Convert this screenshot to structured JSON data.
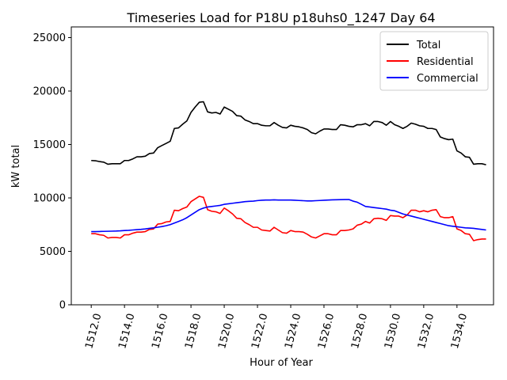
{
  "chart_data": {
    "type": "line",
    "title": "Timeseries Load for P18U p18uhs0_1247  Day 64",
    "xlabel": "Hour of Year",
    "ylabel": "kW total",
    "xlim": [
      1510.8,
      1536.2
    ],
    "ylim": [
      0,
      26000
    ],
    "x_ticks": [
      1512,
      1514,
      1516,
      1518,
      1520,
      1522,
      1524,
      1526,
      1528,
      1530,
      1532,
      1534
    ],
    "x_tick_labels": [
      "1512.0",
      "1514.0",
      "1516.0",
      "1518.0",
      "1520.0",
      "1522.0",
      "1524.0",
      "1526.0",
      "1528.0",
      "1530.0",
      "1532.0",
      "1534.0"
    ],
    "y_ticks": [
      0,
      5000,
      10000,
      15000,
      20000,
      25000
    ],
    "y_tick_labels": [
      "0",
      "5000",
      "10000",
      "15000",
      "20000",
      "25000"
    ],
    "legend_position": "top-right",
    "series": [
      {
        "name": "Total",
        "color": "#000000",
        "x_start": 1512,
        "x_step": 0.25,
        "values": [
          13500,
          13480,
          13400,
          13350,
          13150,
          13200,
          13200,
          13200,
          13500,
          13500,
          13650,
          13850,
          13850,
          13900,
          14150,
          14200,
          14700,
          14900,
          15100,
          15300,
          16500,
          16550,
          16900,
          17200,
          18000,
          18500,
          18950,
          19000,
          18050,
          17950,
          18000,
          17850,
          18500,
          18300,
          18100,
          17700,
          17650,
          17300,
          17150,
          16950,
          16950,
          16800,
          16750,
          16750,
          17050,
          16800,
          16600,
          16550,
          16800,
          16700,
          16650,
          16550,
          16400,
          16100,
          16000,
          16250,
          16450,
          16450,
          16400,
          16400,
          16850,
          16800,
          16700,
          16650,
          16850,
          16850,
          16950,
          16750,
          17150,
          17150,
          17050,
          16800,
          17150,
          16850,
          16700,
          16500,
          16700,
          17000,
          16900,
          16750,
          16700,
          16500,
          16500,
          16400,
          15700,
          15550,
          15450,
          15500,
          14400,
          14200,
          13850,
          13800,
          13150,
          13200,
          13200,
          13100
        ]
      },
      {
        "name": "Residential",
        "color": "#ff0000",
        "x_start": 1512,
        "x_step": 0.25,
        "values": [
          6650,
          6650,
          6550,
          6500,
          6250,
          6300,
          6300,
          6250,
          6550,
          6550,
          6700,
          6800,
          6800,
          6850,
          7050,
          7100,
          7550,
          7600,
          7750,
          7800,
          8850,
          8800,
          9000,
          9150,
          9650,
          9900,
          10150,
          10050,
          8900,
          8750,
          8700,
          8550,
          9050,
          8800,
          8500,
          8100,
          8050,
          7700,
          7500,
          7250,
          7250,
          7000,
          6950,
          6900,
          7250,
          7000,
          6750,
          6700,
          6950,
          6850,
          6850,
          6800,
          6600,
          6350,
          6250,
          6450,
          6650,
          6650,
          6550,
          6550,
          6950,
          6950,
          7000,
          7100,
          7450,
          7550,
          7800,
          7650,
          8050,
          8100,
          8050,
          7900,
          8350,
          8300,
          8300,
          8150,
          8400,
          8850,
          8850,
          8700,
          8800,
          8700,
          8850,
          8900,
          8250,
          8150,
          8150,
          8250,
          7100,
          6950,
          6650,
          6600,
          6000,
          6100,
          6150,
          6150
        ]
      },
      {
        "name": "Commercial",
        "color": "#0000ff",
        "x_start": 1512,
        "x_step": 0.25,
        "values": [
          6850,
          6850,
          6860,
          6870,
          6880,
          6890,
          6900,
          6920,
          6950,
          6970,
          7000,
          7030,
          7060,
          7100,
          7150,
          7200,
          7260,
          7320,
          7400,
          7500,
          7650,
          7800,
          7950,
          8150,
          8400,
          8650,
          8900,
          9050,
          9150,
          9200,
          9250,
          9300,
          9400,
          9450,
          9500,
          9550,
          9600,
          9650,
          9680,
          9700,
          9750,
          9780,
          9800,
          9800,
          9820,
          9800,
          9800,
          9800,
          9800,
          9780,
          9760,
          9740,
          9720,
          9720,
          9740,
          9760,
          9780,
          9800,
          9820,
          9830,
          9840,
          9850,
          9850,
          9700,
          9600,
          9400,
          9200,
          9150,
          9100,
          9050,
          9000,
          8950,
          8850,
          8800,
          8650,
          8500,
          8400,
          8300,
          8200,
          8100,
          8000,
          7900,
          7800,
          7700,
          7600,
          7500,
          7400,
          7350,
          7300,
          7250,
          7200,
          7180,
          7150,
          7100,
          7050,
          7000
        ]
      }
    ]
  }
}
